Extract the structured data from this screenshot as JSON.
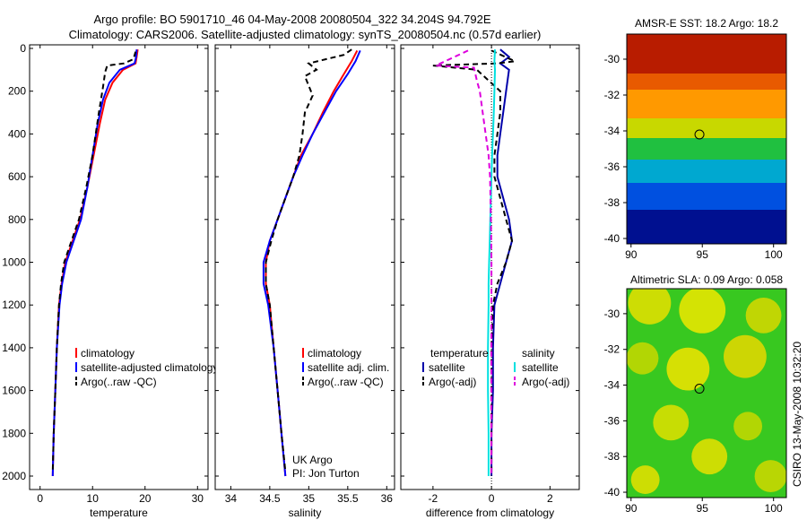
{
  "header": {
    "line1": "Argo profile: BO 5901710_46 04-May-2008 20080504_322 34.204S 94.792E",
    "line2": "Climatology: CARS2006. Satellite-adjusted climatology: synTS_20080504.nc (0.57d earlier)"
  },
  "side_label": "CSIRO 13-May-2008 10:32:20",
  "chart_data": [
    {
      "id": "temperature",
      "type": "line",
      "xlabel": "temperature",
      "xlim": [
        -2,
        32
      ],
      "xticks": [
        "0",
        "10",
        "20",
        "30"
      ],
      "ylim": [
        0,
        2050
      ],
      "yticks": [
        "0",
        "200",
        "400",
        "600",
        "800",
        "1000",
        "1200",
        "1400",
        "1600",
        "1800",
        "2000"
      ],
      "legend": [
        "climatology",
        "satellite-adjusted climatology",
        "Argo(..raw -QC)"
      ],
      "series": [
        {
          "name": "climatology",
          "color": "#ff0000",
          "dash": "",
          "points": [
            [
              18.6,
              5
            ],
            [
              18.4,
              40
            ],
            [
              18.2,
              70
            ],
            [
              15.8,
              100
            ],
            [
              13.8,
              160
            ],
            [
              12.4,
              240
            ],
            [
              11.4,
              350
            ],
            [
              10.2,
              500
            ],
            [
              9.0,
              650
            ],
            [
              7.6,
              800
            ],
            [
              6.2,
              900
            ],
            [
              4.8,
              1000
            ],
            [
              4.1,
              1100
            ],
            [
              3.6,
              1200
            ],
            [
              3.2,
              1400
            ],
            [
              2.9,
              1600
            ],
            [
              2.6,
              1800
            ],
            [
              2.4,
              2000
            ]
          ]
        },
        {
          "name": "satellite-adjusted climatology",
          "color": "#0000ff",
          "dash": "",
          "points": [
            [
              18.4,
              5
            ],
            [
              18.3,
              40
            ],
            [
              18.0,
              70
            ],
            [
              15.2,
              100
            ],
            [
              13.2,
              160
            ],
            [
              12.0,
              240
            ],
            [
              11.0,
              350
            ],
            [
              10.0,
              500
            ],
            [
              9.0,
              650
            ],
            [
              7.8,
              800
            ],
            [
              6.4,
              900
            ],
            [
              5.0,
              1000
            ],
            [
              4.2,
              1100
            ],
            [
              3.7,
              1200
            ],
            [
              3.2,
              1400
            ],
            [
              2.9,
              1600
            ],
            [
              2.6,
              1800
            ],
            [
              2.4,
              2000
            ]
          ]
        },
        {
          "name": "Argo(..raw -QC)",
          "color": "#000000",
          "dash": "6,4",
          "points": [
            [
              18.2,
              15
            ],
            [
              17.8,
              50
            ],
            [
              16.0,
              70
            ],
            [
              12.8,
              80
            ],
            [
              12.4,
              110
            ],
            [
              12.0,
              180
            ],
            [
              11.2,
              300
            ],
            [
              10.0,
              500
            ],
            [
              8.8,
              650
            ],
            [
              7.4,
              800
            ],
            [
              6.0,
              900
            ],
            [
              4.6,
              1000
            ],
            [
              4.0,
              1100
            ],
            [
              3.6,
              1200
            ],
            [
              3.2,
              1400
            ],
            [
              2.9,
              1600
            ],
            [
              2.6,
              1800
            ],
            [
              2.4,
              1980
            ]
          ]
        }
      ]
    },
    {
      "id": "salinity",
      "type": "line",
      "xlabel": "salinity",
      "xlim": [
        33.8,
        36.1
      ],
      "xticks": [
        "34",
        "34.5",
        "35",
        "35.5",
        "36"
      ],
      "ylim": [
        0,
        2050
      ],
      "yticks": [],
      "legend": [
        "climatology",
        "satellite adj. clim.",
        "Argo(..raw -QC)"
      ],
      "annotations": [
        "UK Argo",
        "PI: Jon Turton"
      ],
      "series": [
        {
          "name": "climatology",
          "color": "#ff0000",
          "dash": "",
          "points": [
            [
              35.62,
              10
            ],
            [
              35.55,
              60
            ],
            [
              35.45,
              120
            ],
            [
              35.32,
              200
            ],
            [
              35.18,
              300
            ],
            [
              35.05,
              400
            ],
            [
              34.9,
              500
            ],
            [
              34.8,
              600
            ],
            [
              34.7,
              700
            ],
            [
              34.6,
              800
            ],
            [
              34.5,
              900
            ],
            [
              34.45,
              1000
            ],
            [
              34.45,
              1100
            ],
            [
              34.5,
              1200
            ],
            [
              34.55,
              1400
            ],
            [
              34.6,
              1600
            ],
            [
              34.65,
              1800
            ],
            [
              34.7,
              2000
            ]
          ]
        },
        {
          "name": "satellite adj. clim.",
          "color": "#0000ff",
          "dash": "",
          "points": [
            [
              35.66,
              10
            ],
            [
              35.6,
              60
            ],
            [
              35.5,
              120
            ],
            [
              35.35,
              200
            ],
            [
              35.2,
              300
            ],
            [
              35.05,
              400
            ],
            [
              34.92,
              500
            ],
            [
              34.8,
              600
            ],
            [
              34.7,
              700
            ],
            [
              34.6,
              800
            ],
            [
              34.5,
              900
            ],
            [
              34.42,
              1000
            ],
            [
              34.42,
              1100
            ],
            [
              34.48,
              1200
            ],
            [
              34.55,
              1400
            ],
            [
              34.6,
              1600
            ],
            [
              34.65,
              1800
            ],
            [
              34.7,
              2000
            ]
          ]
        },
        {
          "name": "Argo(..raw -QC)",
          "color": "#000000",
          "dash": "6,4",
          "points": [
            [
              35.55,
              5
            ],
            [
              35.45,
              30
            ],
            [
              35.0,
              70
            ],
            [
              35.1,
              100
            ],
            [
              34.95,
              130
            ],
            [
              35.05,
              220
            ],
            [
              34.95,
              300
            ],
            [
              34.92,
              400
            ],
            [
              34.88,
              500
            ],
            [
              34.8,
              600
            ],
            [
              34.7,
              700
            ],
            [
              34.6,
              800
            ],
            [
              34.52,
              900
            ],
            [
              34.45,
              1000
            ],
            [
              34.45,
              1100
            ],
            [
              34.5,
              1200
            ],
            [
              34.55,
              1400
            ],
            [
              34.6,
              1600
            ],
            [
              34.65,
              1800
            ],
            [
              34.7,
              1980
            ]
          ]
        }
      ]
    },
    {
      "id": "difference",
      "type": "line",
      "xlabel": "difference from climatology",
      "xlim": [
        -3.1,
        3.0
      ],
      "xticks": [
        "-2",
        "0",
        "2"
      ],
      "ylim": [
        0,
        2050
      ],
      "yticks": [],
      "legend_left_title": "temperature",
      "legend_right_title": "salinity",
      "legend_left": [
        "satellite",
        "Argo(-adj)"
      ],
      "legend_right": [
        "satellite",
        "Argo(-adj)"
      ],
      "series": [
        {
          "name": "temperature satellite",
          "color": "#0000aa",
          "dash": "",
          "points": [
            [
              0.3,
              5
            ],
            [
              0.6,
              40
            ],
            [
              0.3,
              70
            ],
            [
              0.6,
              100
            ],
            [
              0.5,
              200
            ],
            [
              0.4,
              300
            ],
            [
              0.3,
              400
            ],
            [
              0.2,
              500
            ],
            [
              0.2,
              600
            ],
            [
              0.4,
              700
            ],
            [
              0.6,
              800
            ],
            [
              0.7,
              900
            ],
            [
              0.5,
              1000
            ],
            [
              0.3,
              1100
            ],
            [
              0.1,
              1200
            ],
            [
              0.05,
              1400
            ],
            [
              0.05,
              1600
            ],
            [
              0.0,
              1800
            ],
            [
              0.0,
              2000
            ]
          ]
        },
        {
          "name": "temperature Argo(-adj)",
          "color": "#000000",
          "dash": "6,4",
          "points": [
            [
              0.0,
              10
            ],
            [
              0.8,
              60
            ],
            [
              0.2,
              70
            ],
            [
              -2.0,
              80
            ],
            [
              -0.5,
              100
            ],
            [
              0.3,
              200
            ],
            [
              0.3,
              300
            ],
            [
              0.2,
              400
            ],
            [
              0.1,
              500
            ],
            [
              0.1,
              600
            ],
            [
              0.3,
              700
            ],
            [
              0.5,
              800
            ],
            [
              0.7,
              900
            ],
            [
              0.5,
              1000
            ],
            [
              0.2,
              1100
            ],
            [
              0.05,
              1200
            ],
            [
              0.0,
              1400
            ],
            [
              0.0,
              1600
            ],
            [
              0.0,
              1800
            ],
            [
              0.0,
              2000
            ]
          ]
        },
        {
          "name": "salinity satellite",
          "color": "#00e0e0",
          "dash": "",
          "points": [
            [
              0.12,
              5
            ],
            [
              0.1,
              60
            ],
            [
              0.12,
              100
            ],
            [
              0.1,
              200
            ],
            [
              0.08,
              300
            ],
            [
              0.05,
              400
            ],
            [
              0.02,
              500
            ],
            [
              0.0,
              600
            ],
            [
              -0.02,
              700
            ],
            [
              -0.04,
              800
            ],
            [
              -0.06,
              900
            ],
            [
              -0.08,
              1000
            ],
            [
              -0.1,
              1100
            ],
            [
              -0.1,
              1200
            ],
            [
              -0.12,
              1400
            ],
            [
              -0.12,
              1600
            ],
            [
              -0.1,
              1800
            ],
            [
              -0.1,
              2000
            ]
          ]
        },
        {
          "name": "salinity Argo(-adj)",
          "color": "#dd00dd",
          "dash": "6,4",
          "points": [
            [
              -0.8,
              10
            ],
            [
              -1.9,
              80
            ],
            [
              -0.6,
              90
            ],
            [
              -0.5,
              150
            ],
            [
              -0.4,
              200
            ],
            [
              -0.3,
              300
            ],
            [
              -0.2,
              400
            ],
            [
              -0.1,
              500
            ],
            [
              -0.05,
              600
            ],
            [
              -0.02,
              800
            ],
            [
              0.0,
              1000
            ],
            [
              0.0,
              1200
            ],
            [
              0.0,
              1400
            ],
            [
              0.0,
              1600
            ],
            [
              0.0,
              1800
            ],
            [
              0.0,
              2000
            ]
          ]
        }
      ]
    },
    {
      "id": "sst-map",
      "type": "heatmap",
      "title": "AMSR-E SST: 18.2 Argo: 18.2",
      "xticks": [
        "90",
        "95",
        "100"
      ],
      "yticks": [
        "-30",
        "-32",
        "-34",
        "-36",
        "-38",
        "-40"
      ],
      "xlim": [
        89.7,
        100.9
      ],
      "ylim": [
        -40.3,
        -28.6
      ],
      "marker": [
        94.8,
        -34.2
      ],
      "bands": [
        {
          "from": -28.6,
          "to": -30.8,
          "color": "#b81c00"
        },
        {
          "from": -30.8,
          "to": -31.7,
          "color": "#e85a00"
        },
        {
          "from": -31.7,
          "to": -33.3,
          "color": "#ff9900"
        },
        {
          "from": -33.3,
          "to": -34.4,
          "color": "#c8d800"
        },
        {
          "from": -34.4,
          "to": -35.6,
          "color": "#20c040"
        },
        {
          "from": -35.6,
          "to": -36.9,
          "color": "#00a8d0"
        },
        {
          "from": -36.9,
          "to": -38.4,
          "color": "#0050e0"
        },
        {
          "from": -38.4,
          "to": -40.3,
          "color": "#001090"
        }
      ]
    },
    {
      "id": "sla-map",
      "type": "heatmap",
      "title": "Altimetric SLA: 0.09 Argo: 0.058",
      "xticks": [
        "90",
        "95",
        "100"
      ],
      "yticks": [
        "-30",
        "-32",
        "-34",
        "-36",
        "-38",
        "-40"
      ],
      "xlim": [
        89.7,
        100.9
      ],
      "ylim": [
        -40.3,
        -28.6
      ],
      "marker": [
        94.8,
        -34.2
      ],
      "base_color": "#38c820",
      "blobs": [
        {
          "x": 91.3,
          "y": -29.4,
          "r": 1.2,
          "color": "#e8e000"
        },
        {
          "x": 95.0,
          "y": -29.8,
          "r": 1.3,
          "color": "#f0e800"
        },
        {
          "x": 99.3,
          "y": -30.1,
          "r": 1.0,
          "color": "#d8d800"
        },
        {
          "x": 90.8,
          "y": -32.5,
          "r": 0.9,
          "color": "#c8d800"
        },
        {
          "x": 94.0,
          "y": -33.1,
          "r": 1.2,
          "color": "#f2e400"
        },
        {
          "x": 98.0,
          "y": -32.4,
          "r": 1.2,
          "color": "#e8d800"
        },
        {
          "x": 92.8,
          "y": -36.1,
          "r": 1.0,
          "color": "#e0e000"
        },
        {
          "x": 98.2,
          "y": -36.3,
          "r": 0.8,
          "color": "#c8d800"
        },
        {
          "x": 95.5,
          "y": -38.0,
          "r": 1.0,
          "color": "#e8e000"
        },
        {
          "x": 99.8,
          "y": -39.1,
          "r": 0.9,
          "color": "#d0d800"
        },
        {
          "x": 91.0,
          "y": -39.3,
          "r": 0.8,
          "color": "#e8e000"
        }
      ]
    }
  ]
}
